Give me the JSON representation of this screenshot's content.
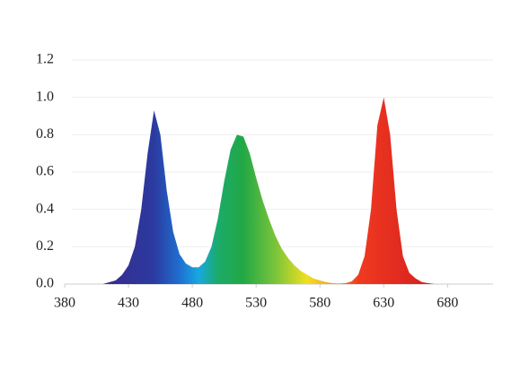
{
  "chart_data": {
    "type": "area",
    "x": [
      410,
      415,
      420,
      425,
      430,
      435,
      440,
      445,
      450,
      455,
      460,
      465,
      470,
      475,
      480,
      485,
      490,
      495,
      500,
      505,
      510,
      515,
      520,
      525,
      530,
      535,
      540,
      545,
      550,
      555,
      560,
      565,
      570,
      575,
      580,
      585,
      590,
      595,
      600,
      605,
      610,
      615,
      620,
      625,
      630,
      635,
      640,
      645,
      650,
      655,
      660,
      665,
      670
    ],
    "values": [
      0,
      0.01,
      0.02,
      0.05,
      0.1,
      0.2,
      0.4,
      0.7,
      0.93,
      0.8,
      0.5,
      0.28,
      0.16,
      0.11,
      0.09,
      0.09,
      0.12,
      0.2,
      0.35,
      0.55,
      0.72,
      0.8,
      0.79,
      0.7,
      0.57,
      0.45,
      0.35,
      0.26,
      0.19,
      0.14,
      0.1,
      0.07,
      0.05,
      0.03,
      0.02,
      0.01,
      0.005,
      0.003,
      0.005,
      0.015,
      0.05,
      0.15,
      0.4,
      0.85,
      1.0,
      0.8,
      0.4,
      0.15,
      0.06,
      0.03,
      0.01,
      0.005,
      0
    ],
    "color_stops": [
      {
        "x": 410,
        "color": "#3a2a8c"
      },
      {
        "x": 450,
        "color": "#2b3aa0"
      },
      {
        "x": 470,
        "color": "#1f6fd0"
      },
      {
        "x": 485,
        "color": "#18a8e0"
      },
      {
        "x": 500,
        "color": "#1bab6a"
      },
      {
        "x": 520,
        "color": "#22a845"
      },
      {
        "x": 545,
        "color": "#7ac43a"
      },
      {
        "x": 570,
        "color": "#f0e020"
      },
      {
        "x": 590,
        "color": "#f5a020"
      },
      {
        "x": 610,
        "color": "#f03a20"
      },
      {
        "x": 670,
        "color": "#d41e1e"
      }
    ],
    "xlim": [
      380,
      710
    ],
    "xticks": [
      380,
      430,
      480,
      530,
      580,
      630,
      680
    ],
    "ylim": [
      0,
      1.2
    ],
    "yticks": [
      {
        "value": 0,
        "label": "0.0"
      },
      {
        "value": 0.2,
        "label": "0.2"
      },
      {
        "value": 0.4,
        "label": "0.4"
      },
      {
        "value": 0.6,
        "label": "0.6"
      },
      {
        "value": 0.8,
        "label": "0.8"
      },
      {
        "value": 1,
        "label": "1.0"
      },
      {
        "value": 1.2,
        "label": "1.2"
      }
    ],
    "grid": true
  }
}
